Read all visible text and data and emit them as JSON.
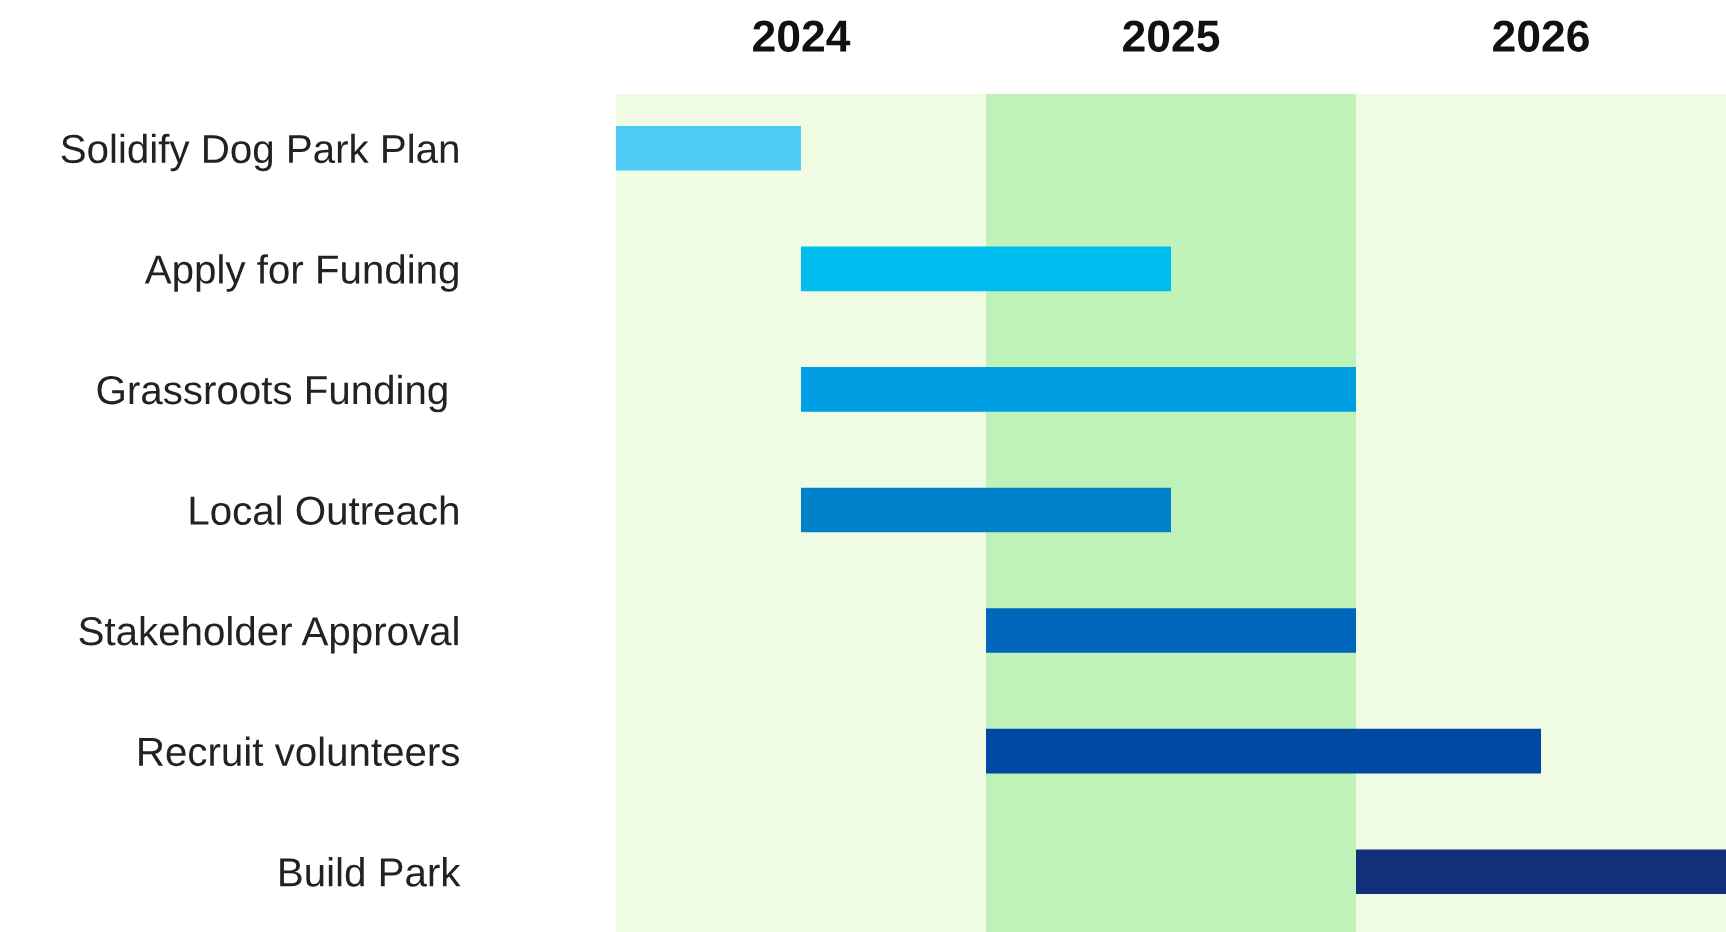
{
  "chart_data": {
    "type": "bar",
    "orientation": "horizontal",
    "categories": [
      "Solidify Dog Park Plan",
      "Apply for Funding",
      "Grassroots Funding ",
      "Local Outreach",
      "Stakeholder Approval",
      "Recruit volunteers",
      "Build Park"
    ],
    "base": [
      2024,
      2024.5,
      2024.5,
      2024.5,
      2025,
      2025,
      2026
    ],
    "values": [
      0.5,
      1,
      1.5,
      1,
      1,
      1.5,
      1
    ],
    "colors": [
      "#4fcbf7",
      "#00bdef",
      "#009fe3",
      "#0081c9",
      "#0066bb",
      "#0049a3",
      "#142f7a"
    ],
    "xlim": [
      2024,
      2027
    ],
    "xticks": [
      {
        "value": 2024.5,
        "label": "2024"
      },
      {
        "value": 2025.5,
        "label": "2025"
      },
      {
        "value": 2026.5,
        "label": "2026"
      }
    ],
    "bands": [
      {
        "axis": "x",
        "from": 2024,
        "to": 2025,
        "color": "#effce3"
      },
      {
        "axis": "x",
        "from": 2025,
        "to": 2026,
        "color": "#bff2b8"
      },
      {
        "axis": "x",
        "from": 2026,
        "to": 2027,
        "color": "#effce3"
      }
    ],
    "grid": false,
    "legend": false
  }
}
